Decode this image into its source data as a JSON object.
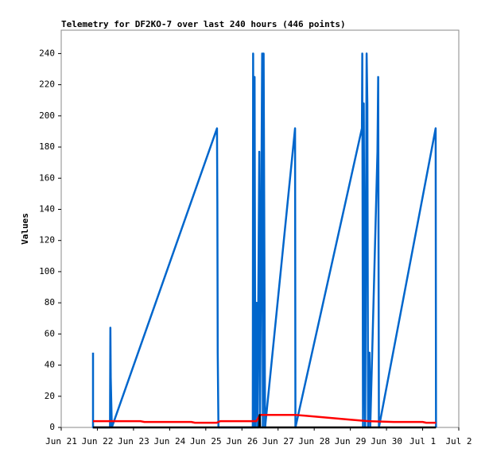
{
  "chart_data": {
    "type": "line",
    "title": "Telemetry for DF2KO-7 over last 240 hours (446 points)",
    "ylabel": "Values",
    "xlim": [
      0,
      11
    ],
    "xticks": [
      {
        "value": 0,
        "label": "Jun 21"
      },
      {
        "value": 1,
        "label": "Jun 22"
      },
      {
        "value": 2,
        "label": "Jun 23"
      },
      {
        "value": 3,
        "label": "Jun 24"
      },
      {
        "value": 4,
        "label": "Jun 25"
      },
      {
        "value": 5,
        "label": "Jun 26"
      },
      {
        "value": 6,
        "label": "Jun 27"
      },
      {
        "value": 7,
        "label": "Jun 28"
      },
      {
        "value": 8,
        "label": "Jun 29"
      },
      {
        "value": 9,
        "label": "Jun 30"
      },
      {
        "value": 10,
        "label": "Jul 1"
      },
      {
        "value": 11,
        "label": "Jul 2"
      }
    ],
    "ylim": [
      0,
      255
    ],
    "yticks": [
      0,
      20,
      40,
      60,
      80,
      100,
      120,
      140,
      160,
      180,
      200,
      220,
      240
    ],
    "series": [
      {
        "color": "#000000",
        "x": [
          0.88,
          5.48,
          5.49,
          5.5,
          10.37
        ],
        "values": [
          0,
          0,
          8,
          0,
          0
        ]
      },
      {
        "color": "#ff0000",
        "x": [
          0.88,
          2.2,
          2.3,
          3.6,
          3.7,
          4.3,
          4.4,
          5.4,
          5.5,
          6.5,
          7.0,
          7.5,
          8.0,
          8.5,
          9.2,
          10.0,
          10.1,
          10.37
        ],
        "values": [
          4,
          4,
          3.5,
          3.5,
          3,
          3,
          4,
          4,
          8,
          8,
          7,
          6,
          5,
          4,
          3.5,
          3.5,
          3,
          3
        ]
      },
      {
        "color": "#0066cc",
        "x": [
          0.88,
          0.88,
          1.35,
          1.36,
          1.37,
          1.4,
          4.31,
          4.32,
          4.33,
          4.35,
          5.3,
          5.31,
          5.33,
          5.35,
          5.37,
          5.39,
          5.41,
          5.43,
          5.48,
          5.5,
          5.56,
          5.58,
          5.6,
          5.62,
          5.64,
          6.47,
          6.48,
          8.32,
          8.33,
          8.35,
          8.37,
          8.39,
          8.41,
          8.45,
          8.47,
          8.49,
          8.53,
          8.55,
          8.75,
          8.77,
          8.79,
          10.36,
          10.37
        ],
        "values": [
          48,
          0,
          0,
          64,
          32,
          0,
          192,
          145,
          48,
          0,
          0,
          240,
          0,
          225,
          0,
          65,
          80,
          0,
          177,
          0,
          240,
          0,
          240,
          120,
          0,
          192,
          0,
          192,
          240,
          0,
          208,
          96,
          0,
          240,
          208,
          0,
          48,
          0,
          177,
          225,
          0,
          192,
          0
        ]
      }
    ]
  }
}
